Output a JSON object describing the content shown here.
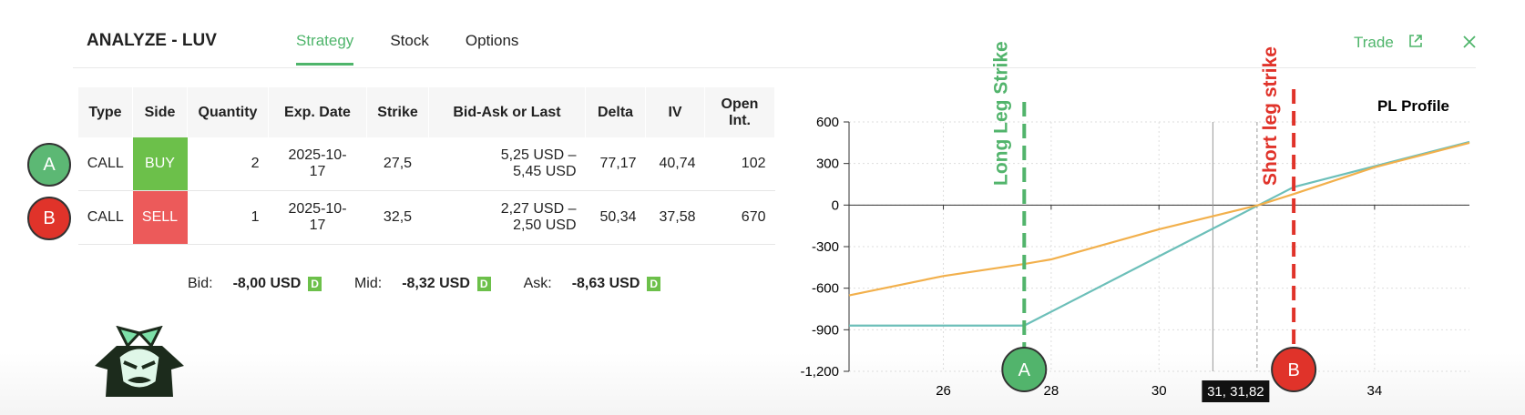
{
  "header": {
    "title": "ANALYZE - LUV",
    "tabs": [
      "Strategy",
      "Stock",
      "Options"
    ],
    "trade": "Trade"
  },
  "badges": [
    "A",
    "B"
  ],
  "table": {
    "columns": [
      "Type",
      "Side",
      "Quantity",
      "Exp. Date",
      "Strike",
      "Bid-Ask or Last",
      "Delta",
      "IV",
      "Open Int."
    ],
    "rows": [
      [
        "CALL",
        "BUY",
        "2",
        "2025-10-17",
        "27,5",
        "5,25 USD – 5,45 USD",
        "77,17",
        "40,74",
        "102"
      ],
      [
        "CALL",
        "SELL",
        "1",
        "2025-10-17",
        "32,5",
        "2,27 USD – 2,50 USD",
        "50,34",
        "37,58",
        "670"
      ]
    ]
  },
  "summary": [
    {
      "label": "Bid:",
      "value": "-8,00 USD",
      "flag": "D"
    },
    {
      "label": "Mid:",
      "value": "-8,32 USD",
      "flag": "D"
    },
    {
      "label": "Ask:",
      "value": "-8,63 USD",
      "flag": "D"
    }
  ],
  "chart_data": {
    "type": "line",
    "title": "PL Profile",
    "x": [
      24.25,
      26,
      27.5,
      28,
      30,
      31.85,
      32.5,
      34,
      35.76
    ],
    "series": [
      {
        "color": "#6cbfb9",
        "values": [
          -870,
          -870,
          -870,
          -770,
          -370,
          0,
          130,
          280,
          456
        ]
      },
      {
        "color": "#f2b04c",
        "values": [
          -652,
          -512,
          -425,
          -392,
          -175,
          0,
          80,
          273,
          449
        ]
      }
    ],
    "xlim": [
      24.25,
      35.76
    ],
    "ylim": [
      -1200,
      600
    ],
    "xticks": [
      26,
      28,
      30,
      34
    ],
    "yticks": [
      600,
      300,
      0,
      -300,
      -600,
      -900,
      {
        "value": -1200,
        "label": "-1,200"
      }
    ],
    "grid": true,
    "annotations": [
      {
        "text": "Long Leg Strike",
        "x": 27.5,
        "color": "#52b46c",
        "marker": "A"
      },
      {
        "text": "Short leg strike",
        "x": 32.5,
        "color": "#e0332a",
        "marker": "B"
      }
    ],
    "cursor": {
      "label": "31, 31,82",
      "x": 31,
      "x2": 31.82
    }
  }
}
